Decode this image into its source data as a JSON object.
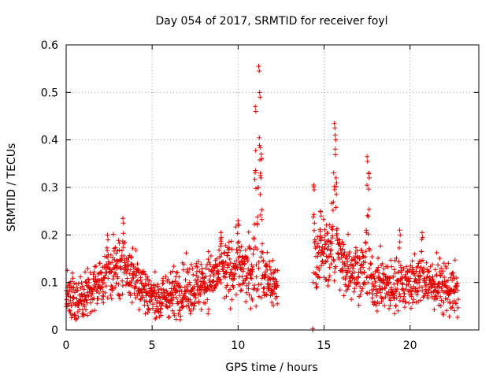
{
  "chart_data": {
    "type": "scatter",
    "title": "Day 054 of 2017, SRMTID for receiver foyl",
    "xlabel": "GPS time / hours",
    "ylabel": "SRMTID / TECUs",
    "xlim": [
      0,
      24
    ],
    "ylim": [
      0,
      0.6
    ],
    "x_ticks": [
      0,
      5,
      10,
      15,
      20
    ],
    "y_ticks": [
      0,
      0.1,
      0.2,
      0.3,
      0.4,
      0.5,
      0.6
    ],
    "x_tick_labels": [
      "0",
      "5",
      "10",
      "15",
      "20"
    ],
    "y_tick_labels": [
      "0",
      "0.1",
      "0.2",
      "0.3",
      "0.4",
      "0.5",
      "0.6"
    ],
    "grid": true,
    "marker": "+",
    "color": "#e00000",
    "series": [
      {
        "name": "SRMTID",
        "profile": [
          {
            "x": 0.0,
            "y": 0.075
          },
          {
            "x": 0.5,
            "y": 0.065
          },
          {
            "x": 1.0,
            "y": 0.07
          },
          {
            "x": 1.5,
            "y": 0.08
          },
          {
            "x": 2.0,
            "y": 0.1
          },
          {
            "x": 2.5,
            "y": 0.12
          },
          {
            "x": 3.0,
            "y": 0.13
          },
          {
            "x": 3.5,
            "y": 0.125
          },
          {
            "x": 4.0,
            "y": 0.11
          },
          {
            "x": 4.5,
            "y": 0.09
          },
          {
            "x": 5.0,
            "y": 0.07
          },
          {
            "x": 5.5,
            "y": 0.065
          },
          {
            "x": 6.0,
            "y": 0.075
          },
          {
            "x": 7.0,
            "y": 0.085
          },
          {
            "x": 8.0,
            "y": 0.1
          },
          {
            "x": 9.0,
            "y": 0.12
          },
          {
            "x": 10.0,
            "y": 0.13
          },
          {
            "x": 10.5,
            "y": 0.12
          },
          {
            "x": 11.0,
            "y": 0.12
          },
          {
            "x": 11.5,
            "y": 0.11
          },
          {
            "x": 12.0,
            "y": 0.1
          },
          {
            "x": 12.3,
            "y": 0.09
          },
          {
            "x": 14.4,
            "y": 0.15
          },
          {
            "x": 15.0,
            "y": 0.16
          },
          {
            "x": 15.5,
            "y": 0.17
          },
          {
            "x": 16.0,
            "y": 0.14
          },
          {
            "x": 17.0,
            "y": 0.13
          },
          {
            "x": 18.0,
            "y": 0.1
          },
          {
            "x": 19.0,
            "y": 0.09
          },
          {
            "x": 20.0,
            "y": 0.1
          },
          {
            "x": 21.0,
            "y": 0.1
          },
          {
            "x": 22.0,
            "y": 0.09
          },
          {
            "x": 22.8,
            "y": 0.08
          }
        ],
        "spikes": [
          {
            "x": 2.4,
            "y": 0.2
          },
          {
            "x": 3.3,
            "y": 0.235
          },
          {
            "x": 9.0,
            "y": 0.205
          },
          {
            "x": 10.0,
            "y": 0.23
          },
          {
            "x": 11.0,
            "y": 0.47
          },
          {
            "x": 11.2,
            "y": 0.555
          },
          {
            "x": 11.25,
            "y": 0.5
          },
          {
            "x": 11.3,
            "y": 0.33
          },
          {
            "x": 11.35,
            "y": 0.37
          },
          {
            "x": 14.4,
            "y": 0.305
          },
          {
            "x": 14.8,
            "y": 0.25
          },
          {
            "x": 15.6,
            "y": 0.435
          },
          {
            "x": 15.65,
            "y": 0.41
          },
          {
            "x": 15.7,
            "y": 0.32
          },
          {
            "x": 17.5,
            "y": 0.365
          },
          {
            "x": 17.6,
            "y": 0.33
          },
          {
            "x": 19.4,
            "y": 0.21
          },
          {
            "x": 20.7,
            "y": 0.205
          }
        ],
        "gap": [
          12.3,
          14.35
        ],
        "isolated_point": {
          "x": 14.35,
          "y": 0.0
        }
      }
    ]
  }
}
